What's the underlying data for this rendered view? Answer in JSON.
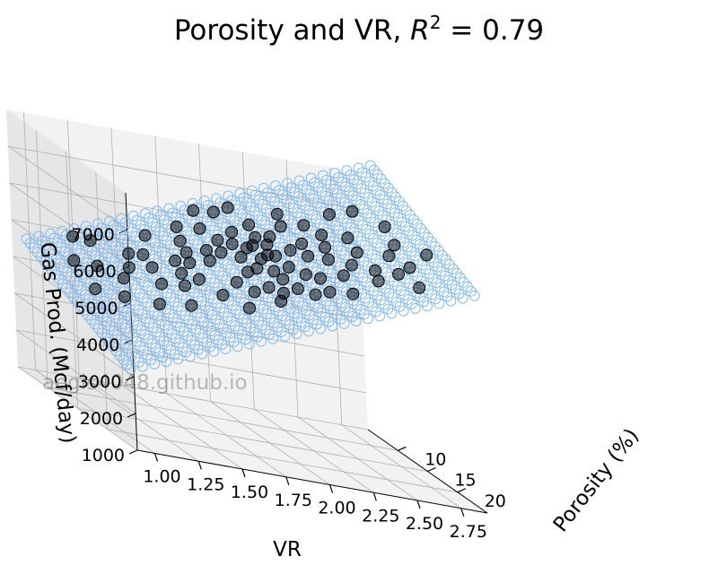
{
  "chart_data": {
    "type": "scatter",
    "title": "Porosity and VR, ",
    "title_math": {
      "base": "R",
      "exp": "2",
      "rest": " = 0.79"
    },
    "xlabel": "VR",
    "ylabel": "Porosity (%)",
    "zlabel": "Gas Prod. (Mcf/day)",
    "watermark": "aegis4048.github.io",
    "x_ticks": [
      "1.00",
      "1.25",
      "1.50",
      "1.75",
      "2.00",
      "2.25",
      "2.50",
      "2.75"
    ],
    "y_ticks": [
      "10",
      "15",
      "20"
    ],
    "z_ticks": [
      "1000",
      "2000",
      "3000",
      "4000",
      "5000",
      "6000",
      "7000"
    ],
    "xlim": [
      0.9,
      2.9
    ],
    "ylim": [
      5,
      25
    ],
    "zlim": [
      1000,
      8000
    ],
    "grid": true,
    "colors": {
      "points": "#000000",
      "plane": "#70b0f0"
    },
    "series": [
      {
        "type": "scatter",
        "points": [
          [
            1.85,
            12.0,
            6050
          ],
          [
            1.9,
            13.0,
            6100
          ],
          [
            1.95,
            14.0,
            6150
          ],
          [
            2.0,
            13.5,
            6200
          ],
          [
            2.05,
            14.5,
            6100
          ],
          [
            2.1,
            13.0,
            6250
          ],
          [
            1.8,
            14.0,
            5900
          ],
          [
            1.88,
            15.0,
            5950
          ],
          [
            1.98,
            15.5,
            6050
          ],
          [
            2.08,
            15.0,
            6150
          ],
          [
            2.12,
            16.0,
            6000
          ],
          [
            1.92,
            16.5,
            5850
          ],
          [
            2.0,
            17.0,
            5900
          ],
          [
            1.85,
            17.0,
            5750
          ],
          [
            2.05,
            12.5,
            6350
          ],
          [
            1.95,
            11.5,
            6300
          ],
          [
            2.15,
            12.0,
            6400
          ],
          [
            2.2,
            14.0,
            6300
          ],
          [
            1.75,
            13.0,
            5800
          ],
          [
            1.7,
            15.0,
            5700
          ],
          [
            2.25,
            15.5,
            6350
          ],
          [
            2.3,
            13.0,
            6450
          ],
          [
            1.65,
            12.5,
            5600
          ],
          [
            1.6,
            14.5,
            5500
          ],
          [
            2.35,
            16.0,
            6400
          ],
          [
            2.4,
            14.0,
            6550
          ],
          [
            1.55,
            13.5,
            5400
          ],
          [
            2.45,
            17.0,
            6450
          ],
          [
            1.5,
            16.0,
            5300
          ],
          [
            1.45,
            11.0,
            5200
          ],
          [
            2.55,
            15.0,
            6650
          ],
          [
            1.4,
            14.0,
            5150
          ],
          [
            2.6,
            12.0,
            6750
          ],
          [
            1.35,
            17.0,
            5000
          ],
          [
            2.7,
            16.0,
            6800
          ],
          [
            1.3,
            13.0,
            4950
          ],
          [
            2.75,
            18.0,
            6750
          ],
          [
            1.2,
            15.0,
            4800
          ],
          [
            2.8,
            14.0,
            6950
          ],
          [
            1.15,
            12.0,
            4750
          ],
          [
            1.1,
            18.0,
            4550
          ],
          [
            2.65,
            19.0,
            6600
          ],
          [
            1.25,
            19.5,
            4650
          ],
          [
            2.5,
            20.0,
            6400
          ],
          [
            1.6,
            20.0,
            5250
          ],
          [
            2.2,
            19.0,
            6100
          ],
          [
            1.9,
            19.0,
            5600
          ],
          [
            2.0,
            18.5,
            5850
          ],
          [
            1.8,
            10.5,
            6150
          ],
          [
            2.1,
            10.0,
            6450
          ],
          [
            1.7,
            9.5,
            6000
          ],
          [
            2.4,
            10.5,
            6750
          ],
          [
            1.5,
            10.0,
            5650
          ],
          [
            2.3,
            9.0,
            6800
          ],
          [
            1.2,
            9.5,
            5200
          ],
          [
            2.6,
            9.0,
            7050
          ],
          [
            1.05,
            11.0,
            4700
          ],
          [
            2.85,
            11.0,
            7150
          ],
          [
            1.95,
            8.5,
            6500
          ],
          [
            2.05,
            8.0,
            6650
          ],
          [
            1.85,
            8.0,
            6400
          ],
          [
            2.15,
            18.0,
            6050
          ],
          [
            1.75,
            18.0,
            5500
          ],
          [
            2.25,
            11.0,
            6650
          ],
          [
            1.65,
            11.5,
            5800
          ],
          [
            2.35,
            18.5,
            6250
          ],
          [
            1.45,
            18.0,
            5150
          ],
          [
            2.45,
            12.0,
            6700
          ],
          [
            1.55,
            17.5,
            5350
          ],
          [
            2.55,
            18.0,
            6500
          ],
          [
            1.35,
            11.5,
            5200
          ],
          [
            1.0,
            16.0,
            4450
          ],
          [
            2.9,
            16.5,
            7050
          ],
          [
            1.9,
            21.0,
            5450
          ],
          [
            2.1,
            21.0,
            5800
          ],
          [
            2.3,
            21.5,
            6050
          ],
          [
            1.7,
            21.5,
            5150
          ],
          [
            1.4,
            20.5,
            4850
          ],
          [
            2.7,
            21.0,
            6500
          ],
          [
            1.15,
            8.0,
            5100
          ],
          [
            2.75,
            8.5,
            7200
          ],
          [
            1.95,
            20.0,
            5600
          ],
          [
            2.05,
            19.5,
            5750
          ],
          [
            1.8,
            19.5,
            5450
          ],
          [
            2.2,
            20.5,
            5900
          ]
        ]
      },
      {
        "type": "surface",
        "name": "",
        "x_range": [
          0.95,
          2.95
        ],
        "y_range": [
          6.0,
          23.0
        ],
        "coef": {
          "intercept": 3450,
          "x": 1850,
          "y": -95
        }
      }
    ]
  }
}
